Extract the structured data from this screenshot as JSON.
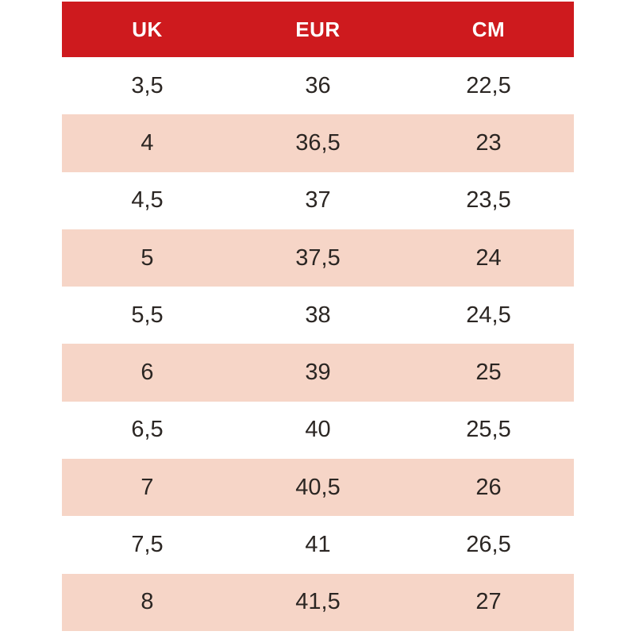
{
  "table": {
    "columns": [
      "UK",
      "EUR",
      "CM"
    ],
    "rows": [
      [
        "3,5",
        "36",
        "22,5"
      ],
      [
        "4",
        "36,5",
        "23"
      ],
      [
        "4,5",
        "37",
        "23,5"
      ],
      [
        "5",
        "37,5",
        "24"
      ],
      [
        "5,5",
        "38",
        "24,5"
      ],
      [
        "6",
        "39",
        "25"
      ],
      [
        "6,5",
        "40",
        "25,5"
      ],
      [
        "7",
        "40,5",
        "26"
      ],
      [
        "7,5",
        "41",
        "26,5"
      ],
      [
        "8",
        "41,5",
        "27"
      ]
    ],
    "colors": {
      "header_bg": "#ce1a1e",
      "header_text": "#ffffff",
      "row_bg": "#ffffff",
      "row_alt_bg": "#f6d5c7",
      "body_text": "#2b2623"
    }
  }
}
